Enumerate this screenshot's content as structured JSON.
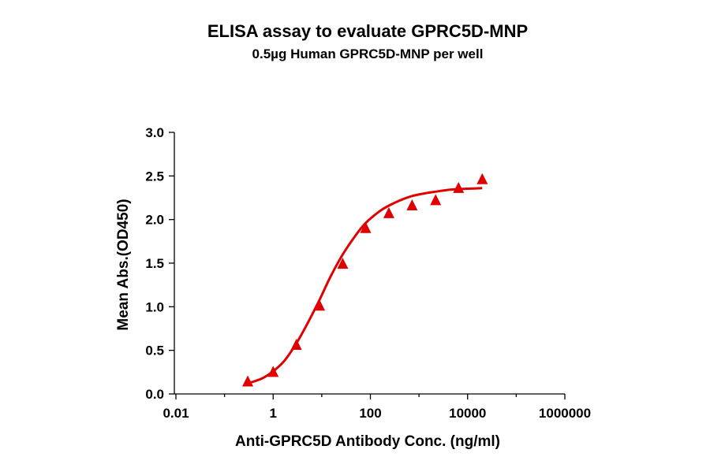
{
  "chart_data": {
    "type": "scatter",
    "title": "ELISA assay to evaluate GPRC5D-MNP",
    "subtitle": "0.5µg Human GPRC5D-MNP per well",
    "xlabel": "Anti-GPRC5D Antibody Conc. (ng/ml)",
    "ylabel": "Mean Abs.(OD450)",
    "x_scale": "log",
    "xlim": [
      0.01,
      1000000
    ],
    "ylim": [
      0,
      3.0
    ],
    "x_ticks": [
      "0.01",
      "1",
      "100",
      "10000",
      "1000000"
    ],
    "y_ticks": [
      "0.0",
      "0.5",
      "1.0",
      "1.5",
      "2.0",
      "2.5",
      "3.0"
    ],
    "grid": false,
    "color": "#e00000",
    "marker": "triangle",
    "series": [
      {
        "x": [
          0.3,
          1.0,
          3.0,
          9.0,
          27.0,
          80.0,
          240.0,
          720.0,
          2200.0,
          6500.0,
          20000.0
        ],
        "y": [
          0.14,
          0.25,
          0.56,
          1.01,
          1.49,
          1.9,
          2.07,
          2.16,
          2.22,
          2.36,
          2.46
        ]
      }
    ],
    "fit_curve": {
      "x": [
        0.3,
        0.6,
        1.0,
        1.7,
        3.0,
        5.0,
        9.0,
        15.0,
        27.0,
        50.0,
        80.0,
        150.0,
        240.0,
        450.0,
        720.0,
        1300.0,
        2200.0,
        4000.0,
        6500.0,
        12000.0,
        20000.0
      ],
      "y": [
        0.12,
        0.18,
        0.26,
        0.38,
        0.58,
        0.8,
        1.08,
        1.34,
        1.6,
        1.82,
        1.96,
        2.09,
        2.16,
        2.23,
        2.27,
        2.3,
        2.32,
        2.34,
        2.35,
        2.355,
        2.36
      ]
    }
  }
}
